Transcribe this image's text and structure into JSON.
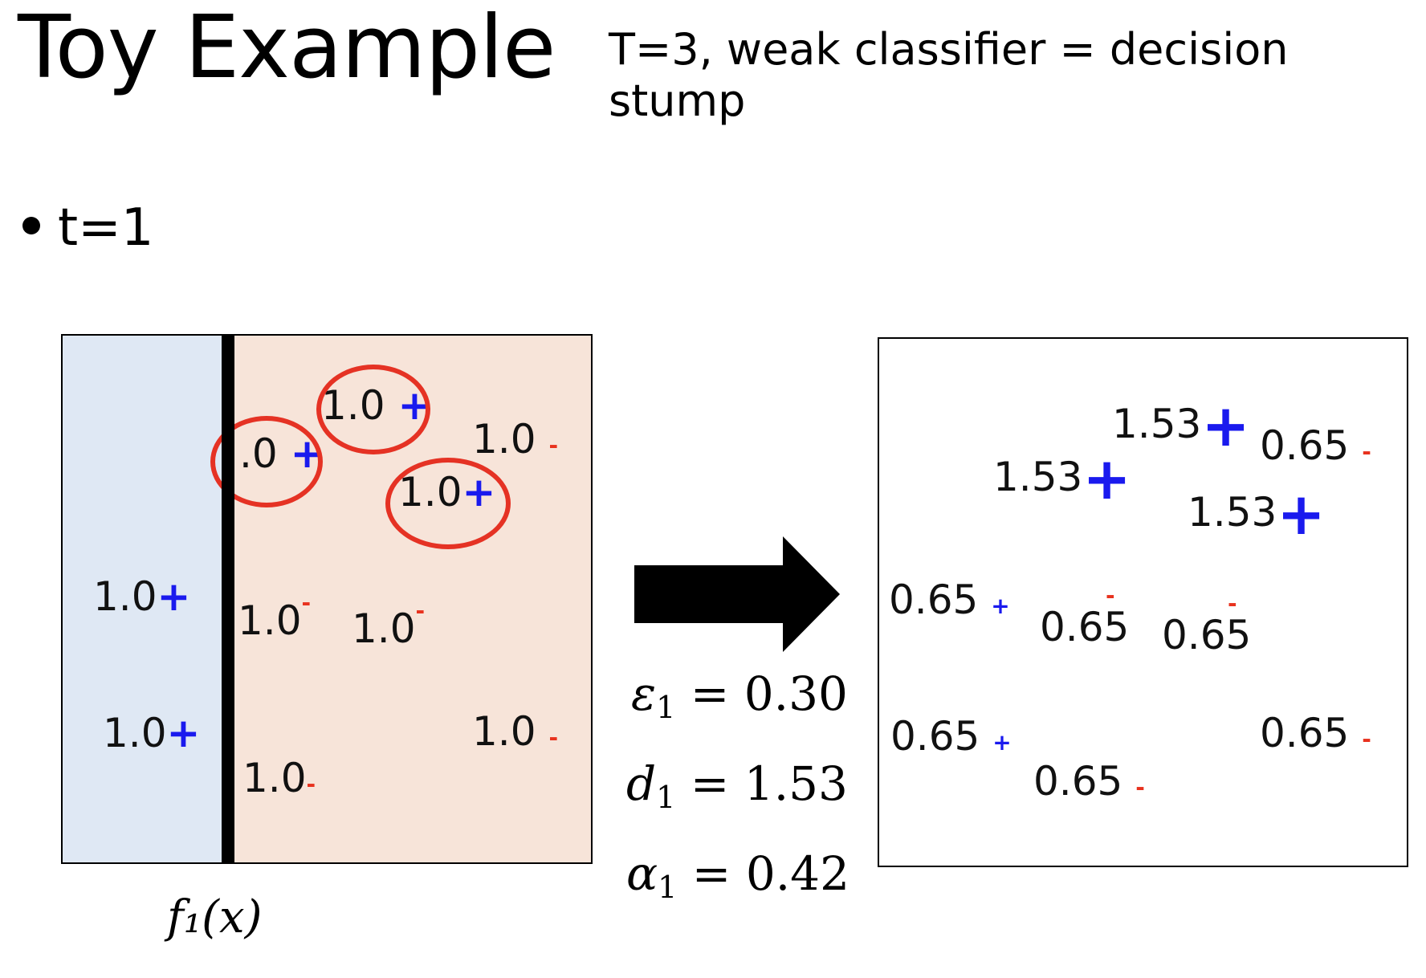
{
  "title": "Toy Example",
  "subtitle": "T=3, weak classifier = decision stump",
  "bullet": "t=1",
  "left_panel": {
    "points": [
      {
        "w": "1.0",
        "label": "+"
      },
      {
        "w": ".0",
        "label": "+"
      },
      {
        "w": "1.0",
        "label": "+"
      },
      {
        "w": "1.0",
        "label": "-"
      },
      {
        "w": "1.0",
        "label": "+"
      },
      {
        "w": "1.0",
        "label": "-"
      },
      {
        "w": "1.0",
        "label": "-"
      },
      {
        "w": "1.0",
        "label": "+"
      },
      {
        "w": "1.0",
        "label": "-"
      },
      {
        "w": "1.0",
        "label": "-"
      }
    ],
    "classifier": "f₁(x)"
  },
  "right_panel": {
    "points": [
      {
        "w": "1.53",
        "label": "+"
      },
      {
        "w": "0.65",
        "label": "-"
      },
      {
        "w": "1.53",
        "label": "+"
      },
      {
        "w": "1.53",
        "label": "+"
      },
      {
        "w": "0.65",
        "label": "+"
      },
      {
        "w": "0.65",
        "label": "-"
      },
      {
        "w": "0.65",
        "label": "-"
      },
      {
        "w": "0.65",
        "label": "+"
      },
      {
        "w": "0.65",
        "label": "-"
      },
      {
        "w": "0.65",
        "label": "-"
      }
    ]
  },
  "metrics": {
    "epsilon": {
      "sym": "ε",
      "sub": "1",
      "value": "= 0.30"
    },
    "d": {
      "sym": "d",
      "sub": "1",
      "value": "= 1.53"
    },
    "alpha": {
      "sym": "α",
      "sub": "1",
      "value": "= 0.42"
    }
  },
  "colors": {
    "positive": "#1a1aee",
    "negative": "#e8321e",
    "left_region": "#dfe8f4",
    "right_region": "#f7e4d9",
    "circle": "#e53224"
  }
}
